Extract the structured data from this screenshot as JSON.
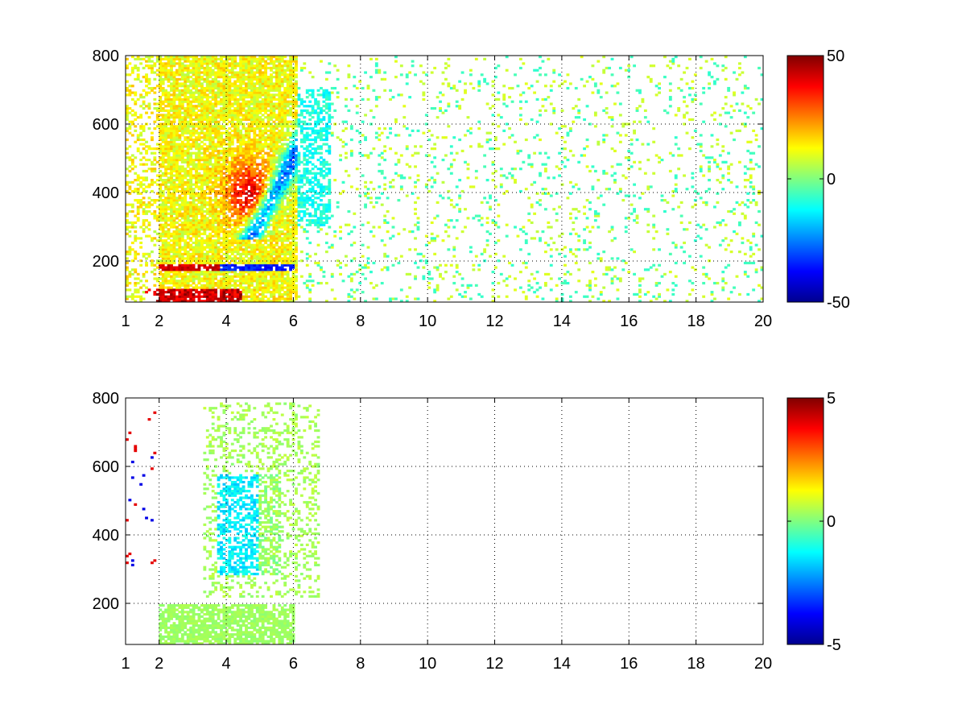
{
  "chart_data": [
    {
      "type": "heatmap",
      "title": "",
      "xlabel": "",
      "ylabel": "",
      "xlim": [
        1,
        20
      ],
      "ylim": [
        80,
        800
      ],
      "xticks": [
        1,
        2,
        4,
        6,
        8,
        10,
        12,
        14,
        16,
        18,
        20
      ],
      "xtick_labels": [
        "1",
        "2",
        "4",
        "6",
        "8",
        "10",
        "12",
        "14",
        "16",
        "18",
        "20"
      ],
      "yticks": [
        200,
        400,
        600,
        800
      ],
      "ytick_labels": [
        "200",
        "400",
        "600",
        "800"
      ],
      "grid": true,
      "colormap": "jet",
      "clim": [
        -50,
        50
      ],
      "colorbar_ticks": [
        50,
        0,
        -50
      ],
      "colorbar_tick_labels": [
        "50",
        "0",
        "-50"
      ],
      "colorbar_position": "right",
      "features": [
        {
          "x": [
            1,
            6
          ],
          "y": [
            80,
            800
          ],
          "value": 15,
          "desc": "dense warm band"
        },
        {
          "x": [
            4,
            5.5
          ],
          "y": [
            300,
            480
          ],
          "value": 40,
          "desc": "red core"
        },
        {
          "x": [
            5,
            6.8
          ],
          "y": [
            300,
            600
          ],
          "value": -20,
          "desc": "cyan/blue arc"
        },
        {
          "x": [
            2,
            6
          ],
          "y": [
            175,
            190
          ],
          "value": -30,
          "desc": "horizontal stripe"
        },
        {
          "x": [
            1.5,
            6
          ],
          "y": [
            80,
            120
          ],
          "value": 45,
          "desc": "bottom red stripe"
        },
        {
          "x": [
            6,
            20
          ],
          "y": [
            80,
            800
          ],
          "value": 0,
          "desc": "sparse near-zero noise"
        }
      ]
    },
    {
      "type": "heatmap",
      "title": "",
      "xlabel": "",
      "ylabel": "",
      "xlim": [
        1,
        20
      ],
      "ylim": [
        80,
        800
      ],
      "xticks": [
        1,
        2,
        4,
        6,
        8,
        10,
        12,
        14,
        16,
        18,
        20
      ],
      "xtick_labels": [
        "1",
        "2",
        "4",
        "6",
        "8",
        "10",
        "12",
        "14",
        "16",
        "18",
        "20"
      ],
      "yticks": [
        200,
        400,
        600,
        800
      ],
      "ytick_labels": [
        "200",
        "400",
        "600",
        "800"
      ],
      "grid": true,
      "colormap": "jet",
      "clim": [
        -5,
        5
      ],
      "colorbar_ticks": [
        5,
        0,
        -5
      ],
      "colorbar_tick_labels": [
        "5",
        "0",
        "-5"
      ],
      "colorbar_position": "right",
      "features": [
        {
          "x": [
            2,
            6
          ],
          "y": [
            80,
            200
          ],
          "value": 0.3,
          "desc": "dense green block"
        },
        {
          "x": [
            3.7,
            5.5
          ],
          "y": [
            280,
            560
          ],
          "value": -1.2,
          "desc": "cyan region"
        },
        {
          "x": [
            3.5,
            6.8
          ],
          "y": [
            250,
            800
          ],
          "value": 0.5,
          "desc": "sparse green"
        },
        {
          "x": [
            1,
            1.8
          ],
          "y": [
            300,
            770
          ],
          "value": 3,
          "desc": "sparse red/blue dots"
        }
      ]
    }
  ]
}
